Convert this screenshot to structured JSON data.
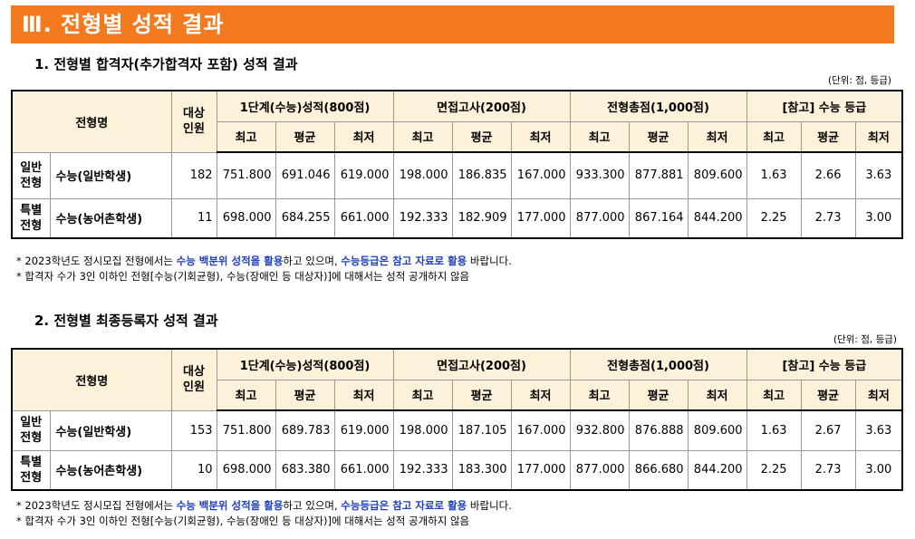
{
  "banner": {
    "title": "Ⅲ. 전형별 성적 결과"
  },
  "headers": {
    "type_name": "전형명",
    "count": [
      "대상",
      "인원"
    ],
    "groups": [
      "1단계(수능)성적(800점)",
      "면접고사(200점)",
      "전형총점(1,000점)",
      "[참고] 수능 등급"
    ],
    "sub": [
      "최고",
      "평균",
      "최저"
    ]
  },
  "sections": [
    {
      "title": "1. 전형별 합격자(추가합격자 포함) 성적 결과",
      "unit": "(단위: 점, 등급)",
      "rows": [
        {
          "type": [
            "일반",
            "전형"
          ],
          "name": "수능(일반학생)",
          "count": "182",
          "values": [
            "751.800",
            "691.046",
            "619.000",
            "198.000",
            "186.835",
            "167.000",
            "933.300",
            "877.881",
            "809.600",
            "1.63",
            "2.66",
            "3.63"
          ]
        },
        {
          "type": [
            "특별",
            "전형"
          ],
          "name": "수능(농어촌학생)",
          "count": "11",
          "values": [
            "698.000",
            "684.255",
            "661.000",
            "192.333",
            "182.909",
            "177.000",
            "877.000",
            "867.164",
            "844.200",
            "2.25",
            "2.73",
            "3.00"
          ]
        }
      ],
      "notes": {
        "n1_prefix": "* 2023학년도 정시모집 전형에서는 ",
        "n1_b1": "수능 백분위 성적을 활용",
        "n1_mid": "하고 있으며, ",
        "n1_b2": "수능등급은 참고 자료로 활용",
        "n1_suffix": " 바랍니다.",
        "n2": "* 합격자 수가 3인 이하인 전형[수능(기회균형), 수능(장애인 등 대상자)]에 대해서는 성적 공개하지 않음"
      }
    },
    {
      "title": "2. 전형별 최종등록자 성적 결과",
      "unit": "(단위: 점, 등급)",
      "rows": [
        {
          "type": [
            "일반",
            "전형"
          ],
          "name": "수능(일반학생)",
          "count": "153",
          "values": [
            "751.800",
            "689.783",
            "619.000",
            "198.000",
            "187.105",
            "167.000",
            "932.800",
            "876.888",
            "809.600",
            "1.63",
            "2.67",
            "3.63"
          ]
        },
        {
          "type": [
            "특별",
            "전형"
          ],
          "name": "수능(농어촌학생)",
          "count": "10",
          "values": [
            "698.000",
            "683.380",
            "661.000",
            "192.333",
            "183.300",
            "177.000",
            "877.000",
            "866.680",
            "844.200",
            "2.25",
            "2.73",
            "3.00"
          ]
        }
      ],
      "notes": {
        "n1_prefix": "* 2023학년도 정시모집 전형에서는 ",
        "n1_b1": "수능 백분위 성적을 활용",
        "n1_mid": "하고 있으며, ",
        "n1_b2": "수능등급은 참고 자료로 활용",
        "n1_suffix": " 바랍니다.",
        "n2": "* 합격자 수가 3인 이하인 전형[수능(기회균형), 수능(장애인 등 대상자)]에 대해서는 성적 공개하지 않음"
      }
    }
  ]
}
